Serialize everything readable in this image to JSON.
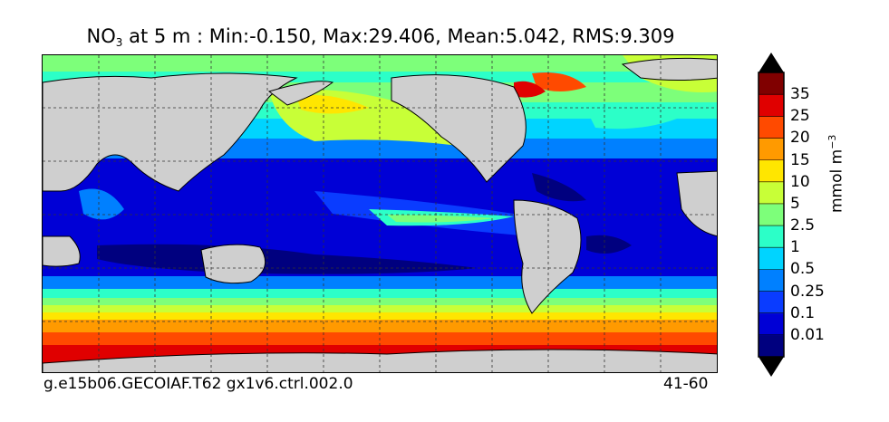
{
  "title": {
    "variable": "NO",
    "subscript": "3",
    "rest": " at 5 m : Min:-0.150, Max:29.406, Mean:5.042, RMS:9.309"
  },
  "footer": {
    "case_name": "g.e15b06.GECOIAF.T62 gx1v6.ctrl.002.0",
    "years": "41-60"
  },
  "colorbar": {
    "unit_prefix": "mmol m",
    "unit_exponent": "−3",
    "levels": [
      "0.01",
      "0.1",
      "0.25",
      "0.5",
      "1",
      "2.5",
      "5",
      "10",
      "15",
      "20",
      "25",
      "35"
    ],
    "colors": [
      "#00007f",
      "#0000d6",
      "#0a3cff",
      "#0080ff",
      "#00d4ff",
      "#2cffc8",
      "#7dff7a",
      "#c8ff37",
      "#ffe600",
      "#ff9a00",
      "#ff4a00",
      "#e00000",
      "#800000"
    ]
  }
}
